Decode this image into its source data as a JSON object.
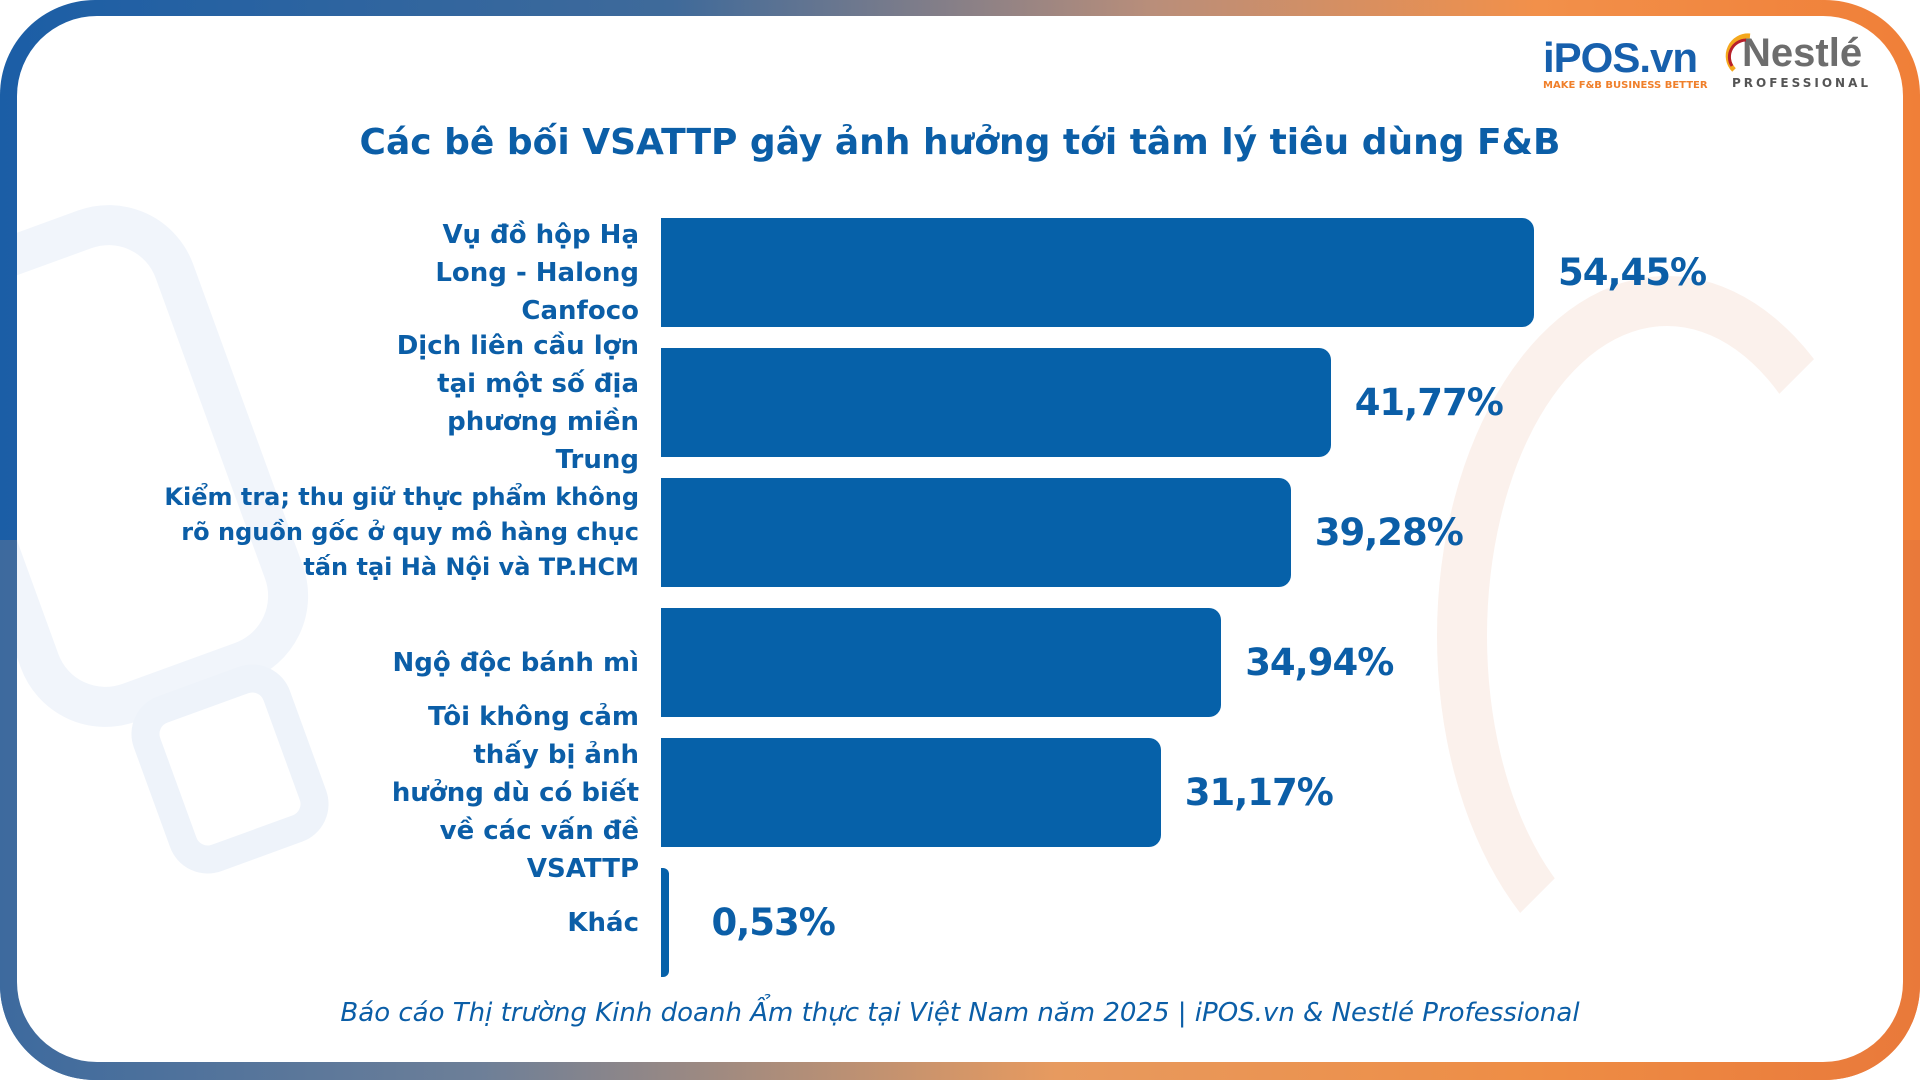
{
  "logos": {
    "ipos": "iPOS.vn",
    "ipos_tagline": "MAKE F&B BUSINESS BETTER",
    "nestle": "Nestlé",
    "nestle_tagline": "PROFESSIONAL"
  },
  "chart_data": {
    "type": "bar",
    "orientation": "horizontal",
    "title": "Các bê bối VSATTP gây ảnh hưởng tới tâm lý tiêu dùng F&B",
    "categories": [
      "Vụ đồ hộp Hạ Long - Halong Canfoco",
      "Dịch liên cầu lợn tại một số địa phương miền Trung",
      "Kiểm tra; thu giữ thực phẩm không rõ nguồn gốc ở quy mô hàng chục tấn tại Hà Nội và TP.HCM",
      "Ngộ độc bánh mì",
      "Tôi không cảm thấy bị ảnh hưởng dù có biết về các vấn đề VSATTP",
      "Khác"
    ],
    "values": [
      54.45,
      41.77,
      39.28,
      34.94,
      31.17,
      0.53
    ],
    "value_labels": [
      "54,45%",
      "41,77%",
      "39,28%",
      "34,94%",
      "31,17%",
      "0,53%"
    ],
    "bar_color": "#0661a9",
    "grid": false
  },
  "footer": "Báo cáo Thị trường Kinh doanh Ẩm thực tại Việt Nam năm 2025 |  iPOS.vn & Nestlé Professional"
}
